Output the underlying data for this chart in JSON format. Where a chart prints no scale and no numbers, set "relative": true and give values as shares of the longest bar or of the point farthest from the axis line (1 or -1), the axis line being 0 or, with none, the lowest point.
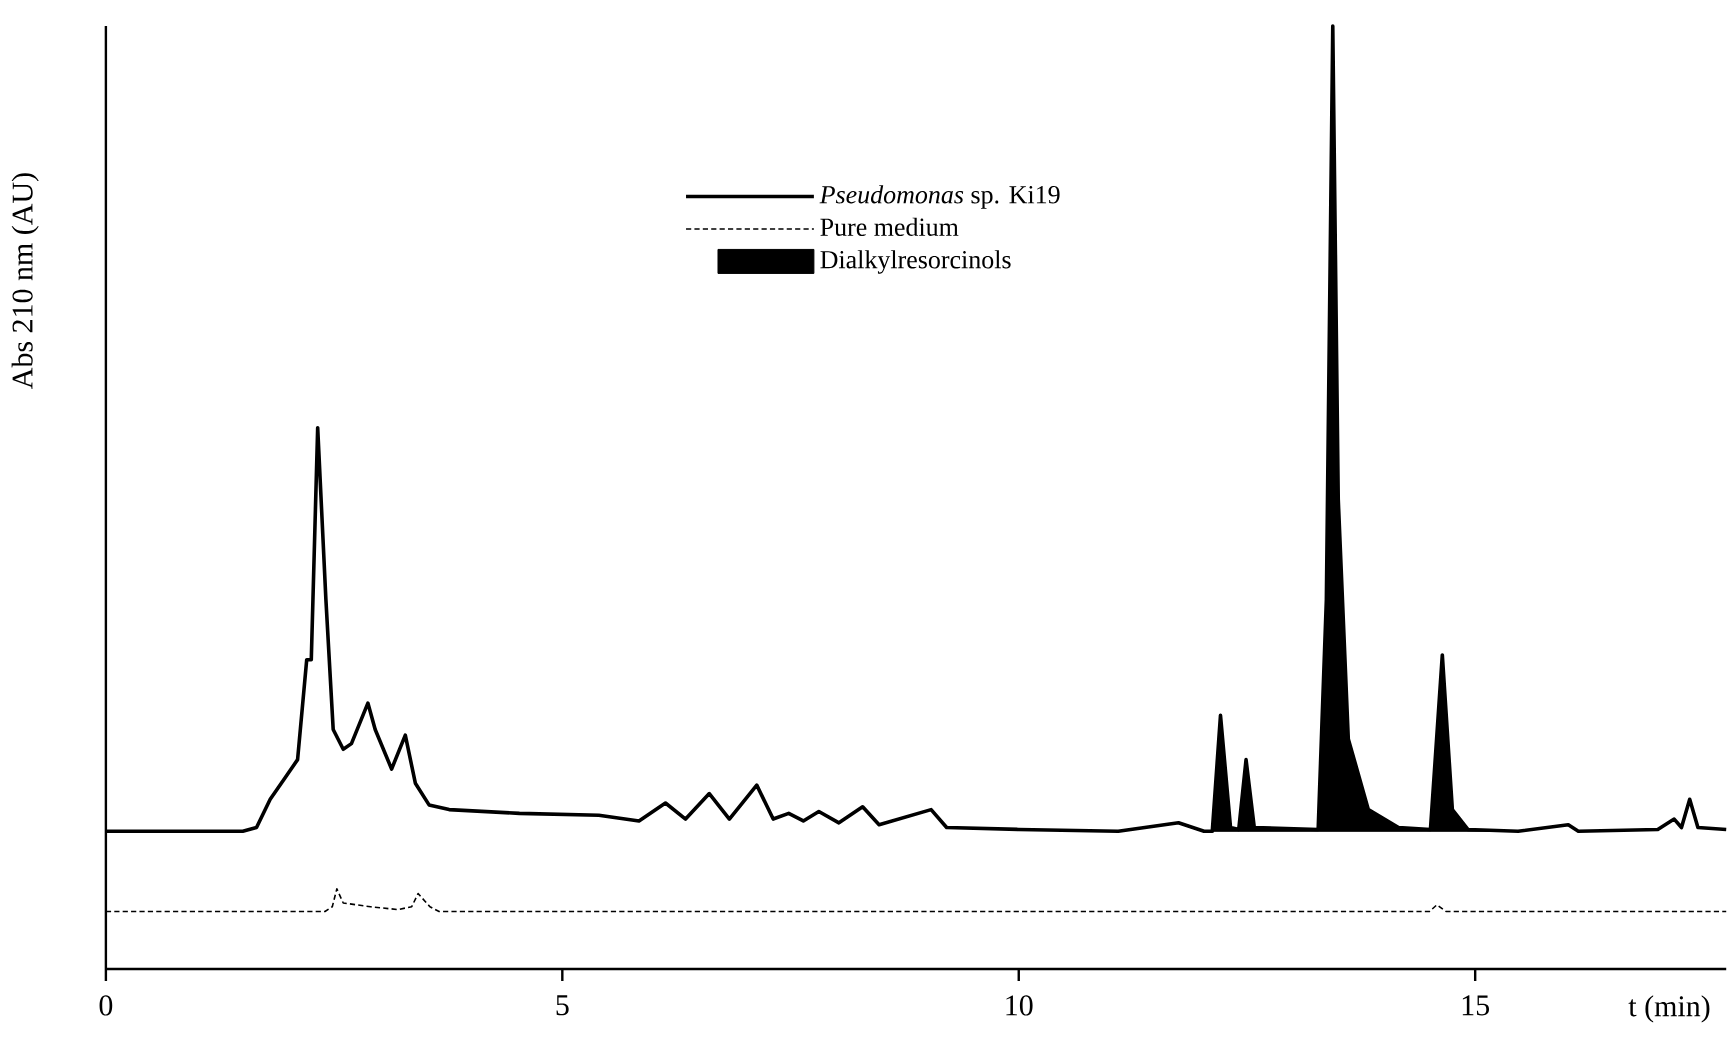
{
  "chart_data": {
    "type": "line",
    "relative": true,
    "xlabel": "t (min)",
    "ylabel": "Abs 210 nm (AU)",
    "xlim": [
      0,
      17.75
    ],
    "xticks": [
      0,
      5,
      10,
      15
    ],
    "legend": "top",
    "grid": false,
    "series": [
      {
        "name": "*Pseudomonas* sp. Ki19",
        "color": "#000000",
        "line_style": "solid",
        "x": [
          0,
          1.5,
          1.65,
          1.8,
          1.95,
          2.1,
          2.2,
          2.25,
          2.32,
          2.41,
          2.49,
          2.6,
          2.69,
          2.87,
          2.95,
          3.13,
          3.28,
          3.39,
          3.54,
          3.76,
          4.53,
          5.4,
          5.84,
          6.13,
          6.35,
          6.61,
          6.83,
          7.13,
          7.31,
          7.48,
          7.64,
          7.81,
          8.03,
          8.29,
          8.47,
          9.04,
          9.21,
          10.0,
          11.09,
          11.75,
          12.03,
          12.12,
          12.21,
          12.32,
          12.41,
          12.49,
          12.58,
          13.28,
          13.37,
          13.44,
          13.5,
          13.61,
          13.83,
          14.16,
          14.51,
          14.64,
          14.75,
          14.92,
          15.47,
          16.02,
          16.13,
          17.0,
          17.18,
          17.26,
          17.35,
          17.44,
          17.75
        ],
        "values": [
          0.146,
          0.146,
          0.15,
          0.18,
          0.201,
          0.222,
          0.328,
          0.328,
          0.574,
          0.392,
          0.254,
          0.233,
          0.239,
          0.282,
          0.254,
          0.212,
          0.248,
          0.197,
          0.174,
          0.169,
          0.165,
          0.163,
          0.157,
          0.176,
          0.159,
          0.186,
          0.159,
          0.195,
          0.159,
          0.165,
          0.157,
          0.167,
          0.155,
          0.172,
          0.153,
          0.169,
          0.15,
          0.148,
          0.146,
          0.155,
          0.146,
          0.146,
          0.269,
          0.15,
          0.148,
          0.222,
          0.15,
          0.148,
          0.392,
          1.0,
          0.498,
          0.244,
          0.169,
          0.15,
          0.148,
          0.333,
          0.169,
          0.148,
          0.146,
          0.153,
          0.146,
          0.148,
          0.159,
          0.15,
          0.18,
          0.15,
          0.148
        ]
      },
      {
        "name": "Pure medium",
        "color": "#000000",
        "line_style": "dashed",
        "x": [
          0,
          2.4,
          2.48,
          2.53,
          2.6,
          2.75,
          2.9,
          3.2,
          3.35,
          3.42,
          3.55,
          3.65,
          14.5,
          14.58,
          14.68,
          17.75
        ],
        "values": [
          0.061,
          0.061,
          0.066,
          0.085,
          0.07,
          0.068,
          0.066,
          0.063,
          0.066,
          0.08,
          0.066,
          0.061,
          0.061,
          0.068,
          0.061,
          0.061
        ]
      },
      {
        "name": "Dialkylresorcinols",
        "type": "area",
        "color": "#000000",
        "x": [
          12.0,
          12.12,
          12.21,
          12.32,
          12.41,
          12.49,
          12.58,
          13.28,
          13.37,
          13.44,
          13.5,
          13.61,
          13.83,
          14.16,
          14.51,
          14.64,
          14.75,
          14.92,
          15.2
        ],
        "values": [
          0.146,
          0.146,
          0.269,
          0.15,
          0.148,
          0.222,
          0.15,
          0.148,
          0.392,
          1.0,
          0.498,
          0.244,
          0.169,
          0.15,
          0.148,
          0.333,
          0.169,
          0.148,
          0.146
        ]
      }
    ]
  }
}
